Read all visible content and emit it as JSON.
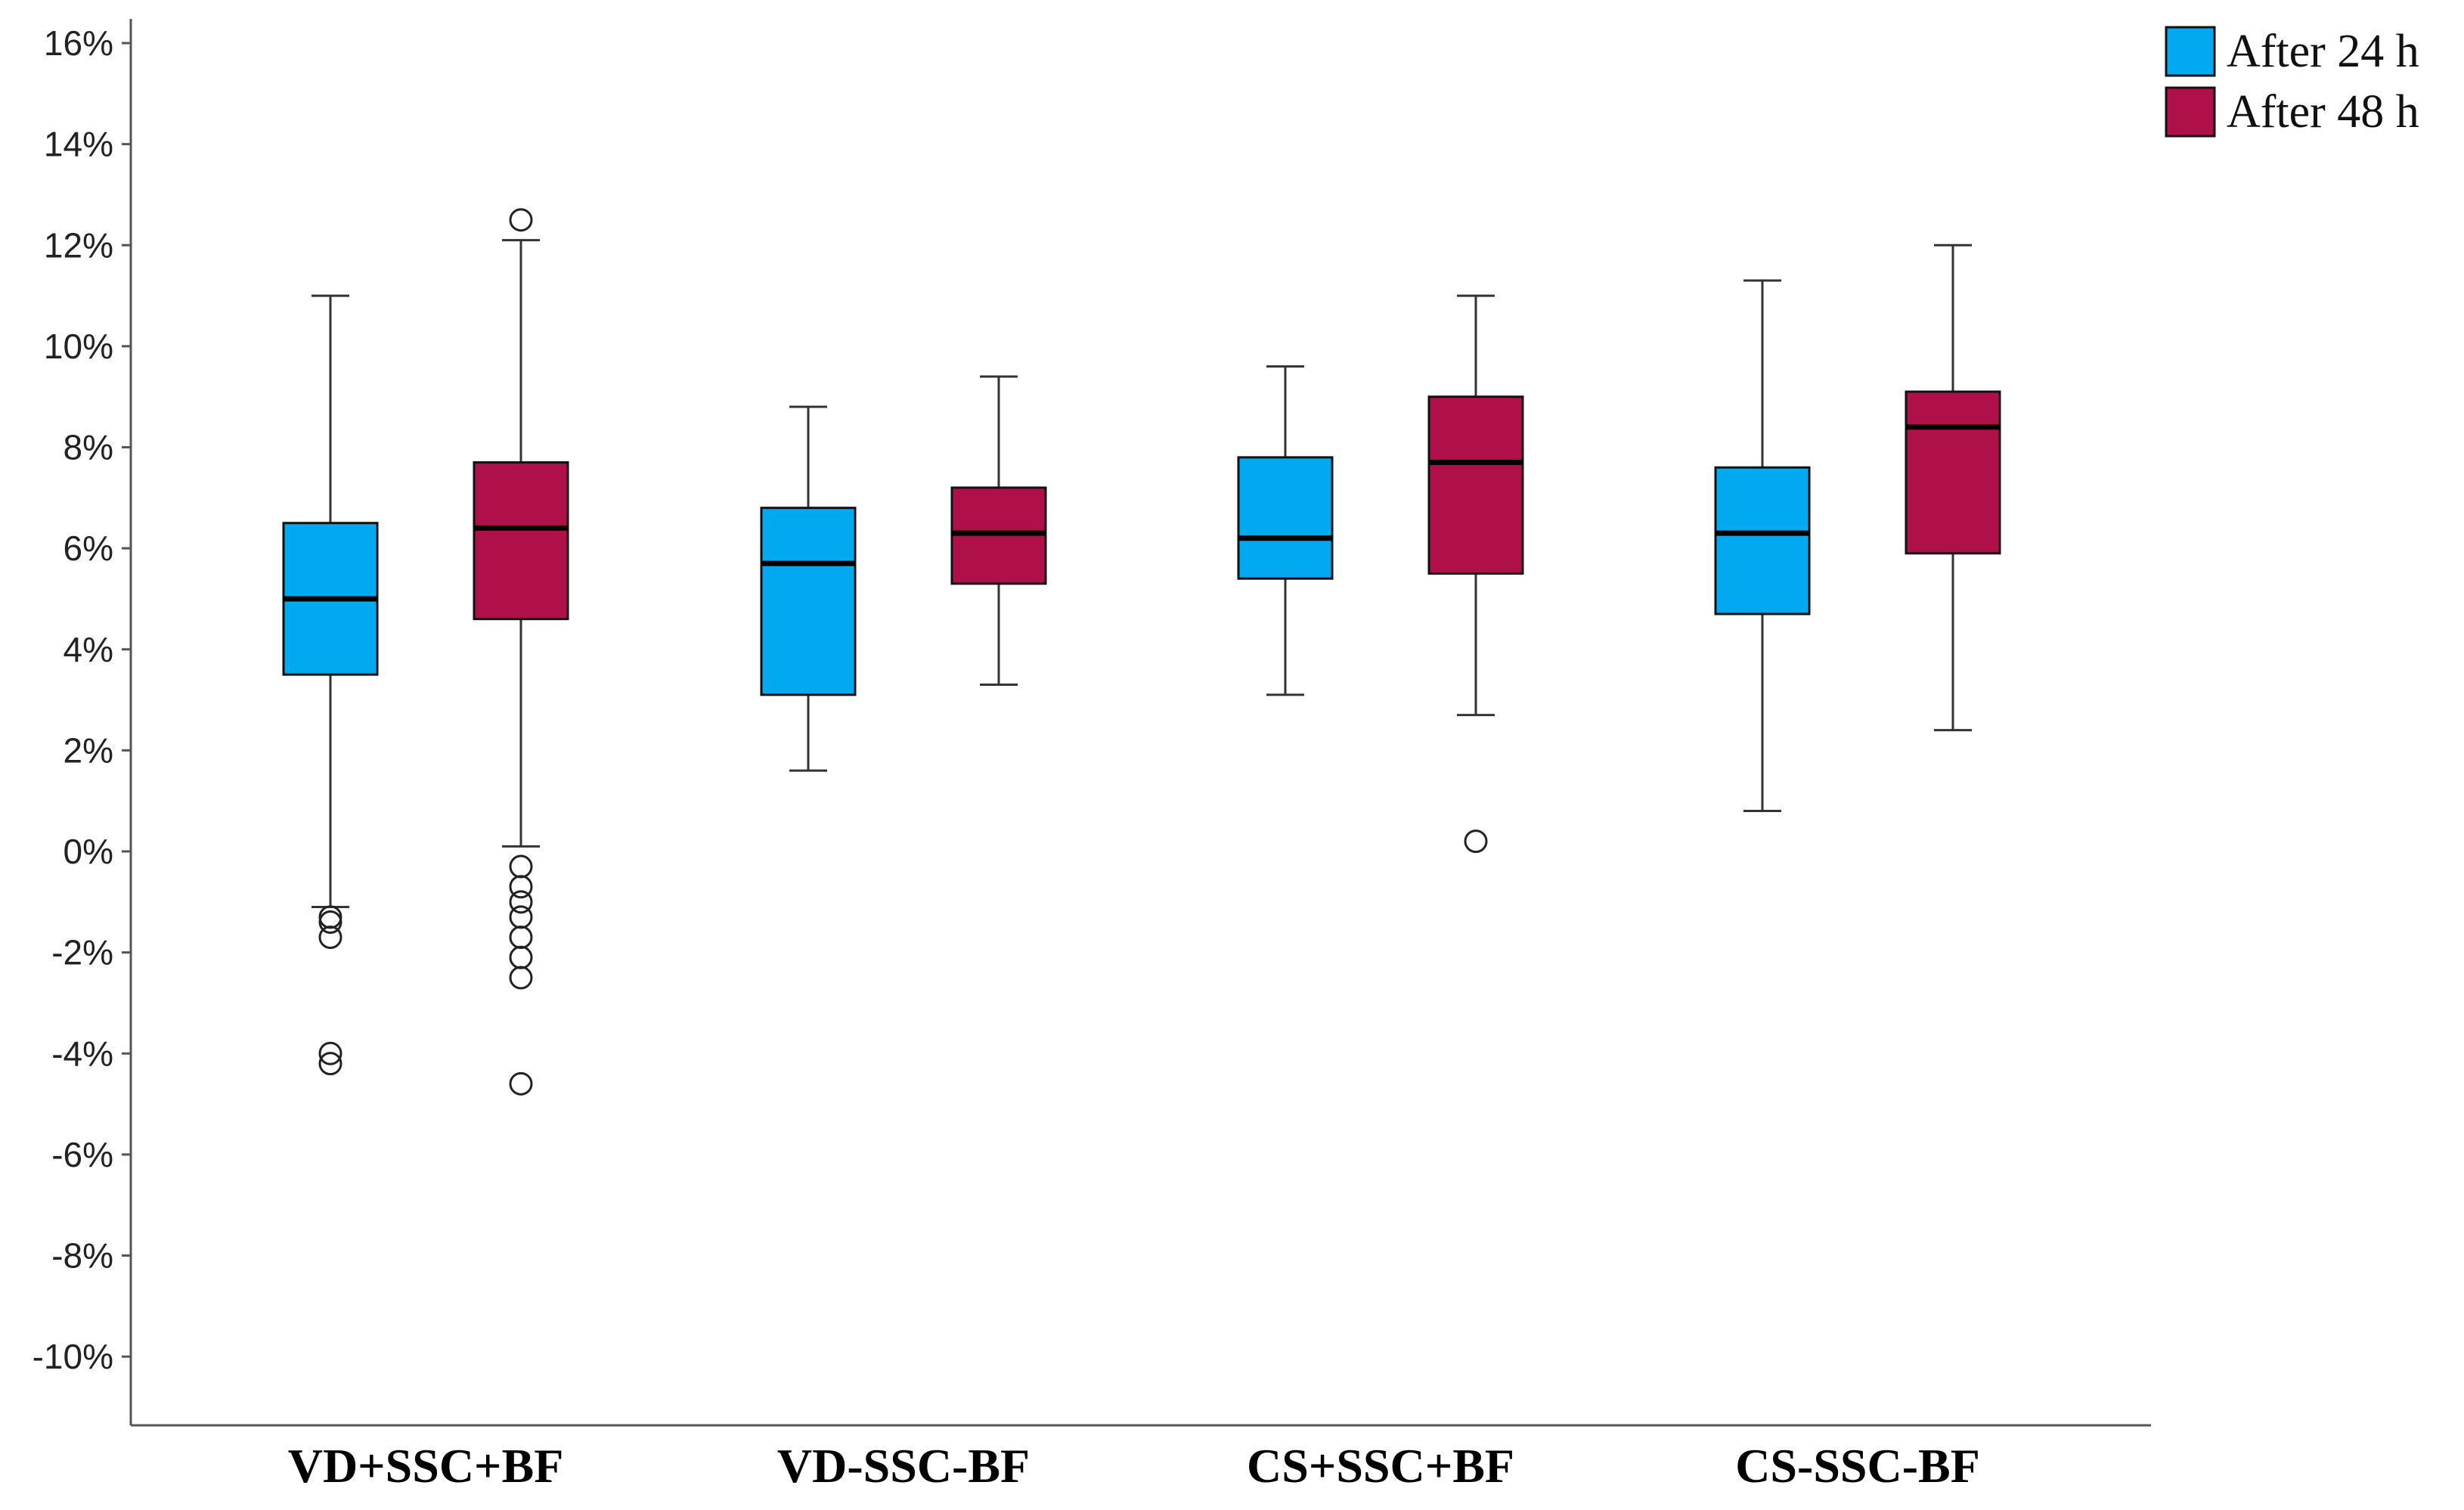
{
  "chart_data": {
    "type": "boxplot",
    "title": "",
    "xlabel": "",
    "ylabel": "",
    "ylim": [
      -11,
      16.5
    ],
    "yticks": [
      16,
      14,
      12,
      10,
      8,
      6,
      4,
      2,
      0,
      -2,
      -4,
      -6,
      -8,
      -10
    ],
    "ytick_labels": [
      "16%",
      "14%",
      "12%",
      "10%",
      "8%",
      "6%",
      "4%",
      "2%",
      "0%",
      "-2%",
      "-4%",
      "-6%",
      "-8%",
      "-10%"
    ],
    "categories": [
      "VD+SSC+BF",
      "VD-SSC-BF",
      "CS+SSC+BF",
      "CS-SSC-BF"
    ],
    "legend_position": "top-right",
    "series": [
      {
        "name": "After 24 h",
        "color": "#00A9F0",
        "boxes": [
          {
            "whisker_low": -1.1,
            "q1": 3.5,
            "median": 5.0,
            "q3": 6.5,
            "whisker_high": 11.0,
            "outliers": [
              -1.3,
              -1.4,
              -1.7,
              -4.0,
              -4.2
            ]
          },
          {
            "whisker_low": 1.6,
            "q1": 3.1,
            "median": 5.7,
            "q3": 6.8,
            "whisker_high": 8.8,
            "outliers": []
          },
          {
            "whisker_low": 3.1,
            "q1": 5.4,
            "median": 6.2,
            "q3": 7.8,
            "whisker_high": 9.6,
            "outliers": []
          },
          {
            "whisker_low": 0.8,
            "q1": 4.7,
            "median": 6.3,
            "q3": 7.6,
            "whisker_high": 11.3,
            "outliers": []
          }
        ]
      },
      {
        "name": "After 48 h",
        "color": "#B0104A",
        "boxes": [
          {
            "whisker_low": 0.1,
            "q1": 4.6,
            "median": 6.4,
            "q3": 7.7,
            "whisker_high": 12.1,
            "outliers": [
              12.5,
              -0.3,
              -0.7,
              -1.0,
              -1.3,
              -1.7,
              -2.1,
              -2.5,
              -4.6
            ]
          },
          {
            "whisker_low": 3.3,
            "q1": 5.3,
            "median": 6.3,
            "q3": 7.2,
            "whisker_high": 9.4,
            "outliers": []
          },
          {
            "whisker_low": 2.7,
            "q1": 5.5,
            "median": 7.7,
            "q3": 9.0,
            "whisker_high": 11.0,
            "outliers": [
              0.2
            ]
          },
          {
            "whisker_low": 2.4,
            "q1": 5.9,
            "median": 8.4,
            "q3": 9.1,
            "whisker_high": 12.0,
            "outliers": []
          }
        ]
      }
    ]
  }
}
